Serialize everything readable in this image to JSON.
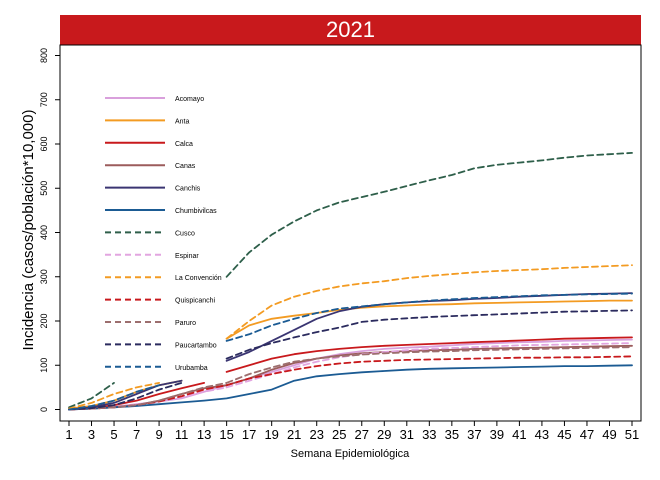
{
  "chart_data": {
    "type": "line",
    "title": "2021",
    "xlabel": "Semana Epidemiológica",
    "ylabel": "Incidencia (casos/población*10,000)",
    "xlim": [
      0,
      52
    ],
    "ylim": [
      -10,
      820
    ],
    "xticks": [
      1,
      3,
      5,
      7,
      9,
      11,
      13,
      15,
      17,
      19,
      21,
      23,
      25,
      27,
      29,
      31,
      33,
      35,
      37,
      39,
      41,
      43,
      45,
      47,
      49,
      51
    ],
    "yticks": [
      0,
      100,
      200,
      300,
      400,
      500,
      600,
      700,
      800
    ],
    "grid": false,
    "legend": "inside-left",
    "series": [
      {
        "name": "Acomayo",
        "color": "#d9a0dc",
        "dash": false,
        "segments": [
          {
            "x": [
              1,
              3,
              5,
              7,
              9,
              11,
              13,
              15
            ],
            "y": [
              0,
              2,
              6,
              12,
              18,
              25,
              40,
              55
            ]
          },
          {
            "x": [
              15,
              17,
              19,
              21,
              23,
              25,
              27,
              29,
              31,
              33,
              35,
              37,
              39,
              41,
              43,
              45,
              47,
              49,
              51
            ],
            "y": [
              55,
              70,
              85,
              100,
              115,
              125,
              132,
              137,
              140,
              142,
              145,
              148,
              150,
              152,
              153,
              155,
              156,
              157,
              158
            ]
          }
        ]
      },
      {
        "name": "Anta",
        "color": "#f39b22",
        "dash": false,
        "segments": [
          {
            "x": [
              1,
              3,
              5,
              7,
              9,
              11
            ],
            "y": [
              2,
              8,
              20,
              40,
              55,
              65
            ]
          },
          {
            "x": [
              15,
              17,
              19,
              21,
              23,
              25,
              27,
              29,
              31,
              33,
              35,
              37,
              39,
              41,
              43,
              45,
              47,
              49,
              51
            ],
            "y": [
              160,
              190,
              205,
              212,
              218,
              225,
              230,
              233,
              235,
              237,
              238,
              240,
              241,
              242,
              243,
              244,
              245,
              246,
              246
            ]
          }
        ]
      },
      {
        "name": "Calca",
        "color": "#c8191c",
        "dash": false,
        "segments": [
          {
            "x": [
              1,
              3,
              5,
              7,
              9,
              11,
              13
            ],
            "y": [
              0,
              3,
              10,
              20,
              35,
              48,
              60
            ]
          },
          {
            "x": [
              15,
              17,
              19,
              21,
              23,
              25,
              27,
              29,
              31,
              33,
              35,
              37,
              39,
              41,
              43,
              45,
              47,
              49,
              51
            ],
            "y": [
              85,
              100,
              115,
              125,
              132,
              137,
              141,
              144,
              146,
              148,
              150,
              152,
              154,
              156,
              158,
              160,
              161,
              162,
              163
            ]
          }
        ]
      },
      {
        "name": "Canas",
        "color": "#9c5c5c",
        "dash": false,
        "segments": [
          {
            "x": [
              1,
              3,
              5,
              7,
              9,
              11,
              13,
              15
            ],
            "y": [
              0,
              2,
              5,
              10,
              20,
              35,
              48,
              55
            ]
          },
          {
            "x": [
              15,
              17,
              19,
              21,
              23,
              25,
              27,
              29,
              31,
              33,
              35,
              37,
              39,
              41,
              43,
              45,
              47,
              49,
              51
            ],
            "y": [
              55,
              70,
              90,
              105,
              115,
              122,
              127,
              130,
              132,
              134,
              135,
              137,
              138,
              139,
              140,
              141,
              142,
              143,
              144
            ]
          }
        ]
      },
      {
        "name": "Canchis",
        "color": "#3a3572",
        "dash": false,
        "segments": [
          {
            "x": [
              1,
              3,
              5,
              7,
              9,
              11
            ],
            "y": [
              0,
              5,
              15,
              35,
              55,
              65
            ]
          },
          {
            "x": [
              15,
              17,
              19,
              21,
              23,
              25,
              27,
              29,
              31,
              33,
              35,
              37,
              39,
              41,
              43,
              45,
              47,
              49,
              51
            ],
            "y": [
              110,
              130,
              155,
              180,
              205,
              222,
              232,
              238,
              242,
              245,
              247,
              250,
              252,
              255,
              257,
              259,
              261,
              262,
              263
            ]
          }
        ]
      },
      {
        "name": "Chumbivilcas",
        "color": "#1b5b93",
        "dash": false,
        "segments": [
          {
            "x": [
              1,
              3,
              5,
              7,
              9,
              11,
              13,
              15,
              17,
              19,
              21,
              23,
              25,
              27,
              29,
              31,
              33,
              35,
              37,
              39,
              41,
              43,
              45,
              47,
              49,
              51
            ],
            "y": [
              0,
              2,
              5,
              8,
              12,
              16,
              20,
              25,
              35,
              45,
              65,
              75,
              80,
              84,
              87,
              90,
              92,
              93,
              94,
              95,
              96,
              97,
              98,
              98,
              99,
              100
            ]
          }
        ]
      },
      {
        "name": "Cusco",
        "color": "#2e5f4a",
        "dash": true,
        "segments": [
          {
            "x": [
              1,
              3,
              5
            ],
            "y": [
              5,
              25,
              60
            ]
          },
          {
            "x": [
              15,
              17,
              19,
              21,
              23,
              25,
              27,
              29,
              31,
              33,
              35,
              37,
              39,
              41,
              43,
              45,
              47,
              49,
              51
            ],
            "y": [
              300,
              355,
              395,
              425,
              450,
              468,
              480,
              492,
              505,
              518,
              530,
              545,
              553,
              558,
              563,
              569,
              574,
              577,
              580
            ]
          }
        ]
      },
      {
        "name": "Espinar",
        "color": "#e2a5e0",
        "dash": true,
        "segments": [
          {
            "x": [
              1,
              3,
              5,
              7,
              9,
              11,
              13,
              15
            ],
            "y": [
              0,
              2,
              5,
              10,
              18,
              28,
              40,
              50
            ]
          },
          {
            "x": [
              15,
              17,
              19,
              21,
              23,
              25,
              27,
              29,
              31,
              33,
              35,
              37,
              39,
              41,
              43,
              45,
              47,
              49,
              51
            ],
            "y": [
              50,
              65,
              80,
              95,
              108,
              118,
              125,
              130,
              134,
              137,
              139,
              141,
              143,
              145,
              146,
              147,
              148,
              149,
              150
            ]
          }
        ]
      },
      {
        "name": "La Convención",
        "color": "#f39b22",
        "dash": true,
        "segments": [
          {
            "x": [
              1,
              3,
              5,
              7,
              9
            ],
            "y": [
              2,
              15,
              35,
              50,
              60
            ]
          },
          {
            "x": [
              15,
              17,
              19,
              21,
              23,
              25,
              27,
              29,
              31,
              33,
              35,
              37,
              39,
              41,
              43,
              45,
              47,
              49,
              51
            ],
            "y": [
              160,
              200,
              235,
              255,
              268,
              278,
              285,
              290,
              297,
              302,
              306,
              310,
              313,
              315,
              317,
              320,
              322,
              324,
              326
            ]
          }
        ]
      },
      {
        "name": "Quispicanchi",
        "color": "#c8191c",
        "dash": true,
        "segments": [
          {
            "x": [
              1,
              3,
              5,
              7,
              9,
              11,
              13,
              15
            ],
            "y": [
              0,
              2,
              5,
              10,
              18,
              30,
              45,
              55
            ]
          },
          {
            "x": [
              15,
              17,
              19,
              21,
              23,
              25,
              27,
              29,
              31,
              33,
              35,
              37,
              39,
              41,
              43,
              45,
              47,
              49,
              51
            ],
            "y": [
              55,
              70,
              80,
              90,
              98,
              104,
              108,
              110,
              112,
              113,
              114,
              115,
              116,
              117,
              117,
              118,
              118,
              119,
              120
            ]
          }
        ]
      },
      {
        "name": "Paruro",
        "color": "#9c6e6e",
        "dash": true,
        "segments": [
          {
            "x": [
              1,
              3,
              5,
              7,
              9,
              11,
              13,
              15
            ],
            "y": [
              0,
              2,
              5,
              10,
              20,
              35,
              50,
              60
            ]
          },
          {
            "x": [
              15,
              17,
              19,
              21,
              23,
              25,
              27,
              29,
              31,
              33,
              35,
              37,
              39,
              41,
              43,
              45,
              47,
              49,
              51
            ],
            "y": [
              60,
              80,
              95,
              108,
              115,
              120,
              124,
              127,
              129,
              131,
              132,
              134,
              135,
              136,
              137,
              138,
              139,
              140,
              141
            ]
          }
        ]
      },
      {
        "name": "Paucartambo",
        "color": "#2b2b5e",
        "dash": true,
        "segments": [
          {
            "x": [
              1,
              3,
              5,
              7,
              9,
              11
            ],
            "y": [
              0,
              3,
              10,
              25,
              45,
              60
            ]
          },
          {
            "x": [
              15,
              17,
              19,
              21,
              23,
              25,
              27,
              29,
              31,
              33,
              35,
              37,
              39,
              41,
              43,
              45,
              47,
              49,
              51
            ],
            "y": [
              115,
              135,
              150,
              163,
              175,
              185,
              198,
              203,
              206,
              209,
              211,
              213,
              215,
              217,
              219,
              221,
              222,
              223,
              224
            ]
          }
        ]
      },
      {
        "name": "Urubamba",
        "color": "#1b5b93",
        "dash": true,
        "segments": [
          {
            "x": [
              1,
              3,
              5,
              7,
              9
            ],
            "y": [
              0,
              8,
              20,
              40,
              55
            ]
          },
          {
            "x": [
              15,
              17,
              19,
              21,
              23,
              25,
              27,
              29,
              31,
              33,
              35,
              37,
              39,
              41,
              43,
              45,
              47,
              49,
              51
            ],
            "y": [
              155,
              170,
              190,
              205,
              218,
              228,
              233,
              238,
              242,
              246,
              249,
              252,
              254,
              256,
              258,
              259,
              260,
              261,
              262
            ]
          }
        ]
      }
    ]
  }
}
